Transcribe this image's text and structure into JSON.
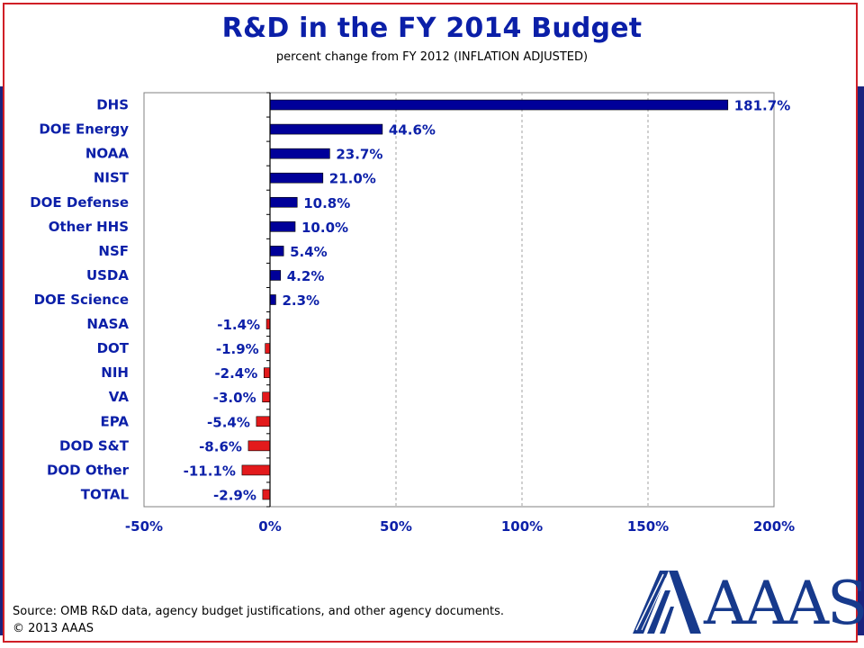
{
  "chart_data": {
    "type": "bar",
    "orientation": "horizontal",
    "title": "R&D in the FY 2014 Budget",
    "subtitle": "percent change from FY 2012 (INFLATION ADJUSTED)",
    "categories": [
      "DHS",
      "DOE Energy",
      "NOAA",
      "NIST",
      "DOE Defense",
      "Other HHS",
      "NSF",
      "USDA",
      "DOE Science",
      "NASA",
      "DOT",
      "NIH",
      "VA",
      "EPA",
      "DOD S&T",
      "DOD Other",
      "TOTAL"
    ],
    "values": [
      181.7,
      44.6,
      23.7,
      21.0,
      10.8,
      10.0,
      5.4,
      4.2,
      2.3,
      -1.4,
      -1.9,
      -2.4,
      -3.0,
      -5.4,
      -8.6,
      -11.1,
      -2.9
    ],
    "value_labels": [
      "181.7%",
      "44.6%",
      "23.7%",
      "21.0%",
      "10.8%",
      "10.0%",
      "5.4%",
      "4.2%",
      "2.3%",
      "-1.4%",
      "-1.9%",
      "-2.4%",
      "-3.0%",
      "-5.4%",
      "-8.6%",
      "-11.1%",
      "-2.9%"
    ],
    "xlim": [
      -50,
      200
    ],
    "xticks": [
      -50,
      0,
      50,
      100,
      150,
      200
    ],
    "xtick_labels": [
      "-50%",
      "0%",
      "50%",
      "100%",
      "150%",
      "200%"
    ],
    "grid": "vertical dashed",
    "colors": {
      "positive": "#000099",
      "negative": "#e31a1c",
      "text": "#0b1fa8"
    }
  },
  "footer": {
    "source": "Source: OMB R&D data, agency budget justifications, and other agency documents.",
    "copyright": "© 2013 AAAS"
  },
  "logo": {
    "text": "AAAS",
    "icon": "aaas-logo-icon"
  }
}
